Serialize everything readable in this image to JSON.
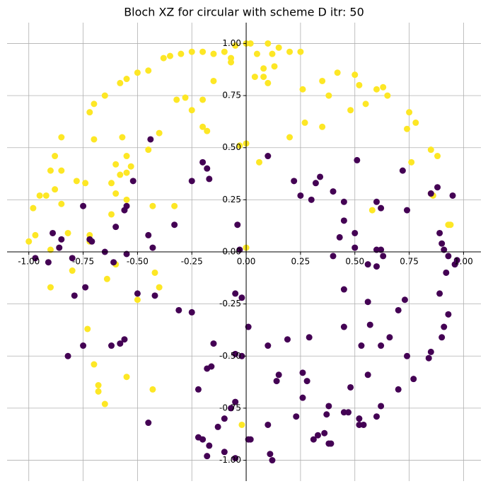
{
  "chart_data": {
    "type": "scatter",
    "title": "Bloch XZ for circular with scheme D itr: 50",
    "xlim": [
      -1.1,
      1.08
    ],
    "ylim": [
      -1.1,
      1.1
    ],
    "xticks": [
      {
        "value": -1,
        "label": "-1.00"
      },
      {
        "value": -0.75,
        "label": "-0.75"
      },
      {
        "value": -0.5,
        "label": "-0.50"
      },
      {
        "value": -0.25,
        "label": "-0.25"
      },
      {
        "value": 0,
        "label": "0.00"
      },
      {
        "value": 0.25,
        "label": "0.25"
      },
      {
        "value": 0.5,
        "label": "0.50"
      },
      {
        "value": 0.75,
        "label": "0.75"
      },
      {
        "value": 1,
        "label": "1.00"
      }
    ],
    "yticks": [
      {
        "value": -1,
        "label": "-1.00"
      },
      {
        "value": -0.75,
        "label": "-0.75"
      },
      {
        "value": -0.5,
        "label": "-0.50"
      },
      {
        "value": -0.25,
        "label": "-0.25"
      },
      {
        "value": 0,
        "label": "0.00"
      },
      {
        "value": 0.25,
        "label": "0.25"
      },
      {
        "value": 0.5,
        "label": "0.50"
      },
      {
        "value": 0.75,
        "label": "0.75"
      },
      {
        "value": 1,
        "label": "1.00"
      }
    ],
    "grid": true,
    "series": [
      {
        "color": "#fde725",
        "x": [
          0.0,
          -0.05,
          0.02,
          -0.1,
          -0.15,
          -0.07,
          -0.2,
          -0.25,
          -0.3,
          -0.35,
          -0.38,
          -0.45,
          -0.5,
          -0.55,
          -0.58,
          -0.65,
          -0.7,
          -0.72,
          -0.85,
          -0.88,
          -0.9,
          -0.95,
          -0.98,
          -1.0,
          -0.97,
          -0.9,
          0.1,
          0.15,
          0.2,
          0.25,
          0.35,
          0.42,
          0.5,
          0.52,
          0.6,
          0.63,
          0.65,
          0.75,
          0.78,
          0.85,
          0.88,
          0.86,
          0.94,
          0.05,
          0.08,
          0.12,
          0.13,
          0.1,
          0.08,
          0.04,
          0.26,
          0.38,
          0.48,
          0.55,
          0.2,
          0.27,
          0.35,
          0.06,
          -0.03,
          0.0,
          -0.07,
          -0.15,
          -0.2,
          -0.2,
          -0.18,
          -0.25,
          -0.28,
          -0.32,
          -0.4,
          -0.45,
          -0.57,
          -0.6,
          -0.58,
          -0.55,
          -0.53,
          -0.55,
          -0.62,
          -0.7,
          -0.74,
          -0.78,
          -0.85,
          -0.88,
          -0.92,
          -0.85,
          -0.82,
          -0.6,
          -0.55,
          -0.62,
          -0.43,
          -0.33,
          -0.72,
          -0.72,
          -0.8,
          -0.9,
          -0.73,
          -0.7,
          -0.68,
          -0.68,
          -0.65,
          -0.55,
          -0.43,
          -0.4,
          -0.42,
          -0.5,
          -0.64,
          -0.6,
          0.0,
          -0.02,
          0.58,
          0.85,
          0.93,
          0.74,
          0.76
        ],
        "y": [
          1.0,
          0.99,
          1.0,
          0.96,
          0.95,
          0.93,
          0.96,
          0.96,
          0.95,
          0.94,
          0.93,
          0.87,
          0.86,
          0.83,
          0.81,
          0.75,
          0.71,
          0.67,
          0.55,
          0.46,
          0.39,
          0.27,
          0.21,
          0.05,
          0.08,
          0.01,
          1.0,
          0.98,
          0.96,
          0.96,
          0.82,
          0.86,
          0.85,
          0.8,
          0.78,
          0.79,
          0.75,
          0.67,
          0.62,
          0.49,
          0.46,
          0.27,
          0.13,
          0.95,
          0.88,
          0.95,
          0.89,
          0.81,
          0.84,
          0.84,
          0.78,
          0.75,
          0.68,
          0.71,
          0.55,
          0.62,
          0.6,
          0.43,
          0.51,
          0.52,
          0.91,
          0.82,
          0.73,
          0.6,
          0.58,
          0.68,
          0.74,
          0.73,
          0.57,
          0.49,
          0.55,
          0.42,
          0.37,
          0.38,
          0.41,
          0.46,
          0.33,
          0.54,
          0.33,
          0.34,
          0.39,
          0.3,
          0.27,
          0.23,
          0.09,
          0.28,
          0.25,
          0.18,
          0.22,
          0.22,
          0.08,
          0.05,
          -0.09,
          -0.17,
          -0.37,
          -0.54,
          -0.64,
          -0.67,
          -0.73,
          -0.6,
          -0.66,
          -0.17,
          -0.1,
          -0.23,
          -0.13,
          -0.06,
          0.02,
          -0.83,
          0.2,
          0.28,
          0.13,
          0.59,
          0.43
        ]
      },
      {
        "color": "#440154",
        "x": [
          0.1,
          0.22,
          0.25,
          0.3,
          0.34,
          0.4,
          0.45,
          0.45,
          0.43,
          0.32,
          0.51,
          0.6,
          0.62,
          0.72,
          0.74,
          0.5,
          0.5,
          0.4,
          0.56,
          0.6,
          0.62,
          0.63,
          0.85,
          0.88,
          0.89,
          0.9,
          0.91,
          0.93,
          0.92,
          0.95,
          0.97,
          0.96,
          0.89,
          0.91,
          0.93,
          0.9,
          0.85,
          0.84,
          0.74,
          0.77,
          0.7,
          0.73,
          0.66,
          0.62,
          0.56,
          0.57,
          0.53,
          0.56,
          0.62,
          0.6,
          0.7,
          0.48,
          0.45,
          0.47,
          0.52,
          0.52,
          0.54,
          0.45,
          0.45,
          0.38,
          0.36,
          0.37,
          0.39,
          0.38,
          0.33,
          0.31,
          0.28,
          0.26,
          0.26,
          0.23,
          0.29,
          0.19,
          0.15,
          0.14,
          0.1,
          0.11,
          0.12,
          0.1,
          0.01,
          0.01,
          -0.05,
          -0.02,
          -0.02,
          -0.05,
          -0.07,
          -0.1,
          -0.13,
          -0.17,
          -0.18,
          -0.2,
          -0.22,
          -0.15,
          -0.16,
          -0.18,
          -0.22,
          -0.25,
          -0.31,
          -0.03,
          -0.04,
          0.6,
          -0.1,
          -0.05,
          -0.45,
          -0.42,
          -0.5,
          -0.56,
          -0.58,
          -0.62,
          -0.75,
          -0.74,
          -0.79,
          -0.82,
          -0.55,
          -0.61,
          -0.65,
          -0.71,
          -0.72,
          -0.75,
          -0.85,
          -0.86,
          -0.89,
          -0.91,
          -0.97,
          -0.8,
          -0.55,
          -0.56,
          -0.6,
          -0.52,
          -0.45,
          -0.43,
          -0.44,
          -0.33,
          -0.25,
          -0.2,
          -0.17,
          -0.18,
          -0.05,
          0.02
        ],
        "y": [
          0.46,
          0.34,
          0.27,
          0.25,
          0.36,
          0.29,
          0.24,
          0.15,
          0.07,
          0.33,
          0.44,
          0.24,
          0.21,
          0.39,
          0.2,
          0.09,
          0.02,
          -0.02,
          -0.06,
          -0.07,
          0.01,
          -0.02,
          0.28,
          0.31,
          0.09,
          0.04,
          0.01,
          -0.02,
          -0.1,
          0.27,
          -0.04,
          -0.06,
          -0.2,
          -0.36,
          -0.3,
          -0.41,
          -0.48,
          -0.51,
          -0.5,
          -0.61,
          -0.28,
          -0.23,
          -0.41,
          -0.45,
          -0.24,
          -0.35,
          -0.45,
          -0.59,
          -0.74,
          -0.79,
          -0.66,
          -0.65,
          -0.77,
          -0.77,
          -0.8,
          -0.83,
          -0.83,
          -0.36,
          -0.18,
          -0.74,
          -0.87,
          -0.78,
          -0.92,
          -0.92,
          -0.88,
          -0.9,
          -0.62,
          -0.58,
          -0.7,
          -0.79,
          -0.41,
          -0.42,
          -0.59,
          -0.62,
          -0.45,
          -0.97,
          -1.0,
          -0.83,
          -0.36,
          -0.9,
          -0.49,
          -0.5,
          -0.22,
          -0.72,
          -0.75,
          -0.8,
          -0.84,
          -0.93,
          -0.98,
          -0.9,
          -0.66,
          -0.44,
          -0.55,
          -0.56,
          -0.89,
          -0.29,
          -0.28,
          0.01,
          0.13,
          0.01,
          -0.96,
          -0.99,
          -0.82,
          -0.21,
          -0.2,
          -0.42,
          -0.44,
          -0.45,
          -0.45,
          -0.17,
          -0.21,
          -0.5,
          -0.01,
          -0.05,
          0.0,
          0.05,
          0.06,
          0.22,
          0.06,
          0.02,
          0.09,
          -0.05,
          -0.03,
          -0.03,
          0.22,
          0.2,
          0.12,
          0.34,
          0.08,
          0.02,
          0.54,
          0.13,
          0.34,
          0.43,
          0.35,
          0.4,
          -0.2,
          -0.9
        ]
      }
    ]
  }
}
